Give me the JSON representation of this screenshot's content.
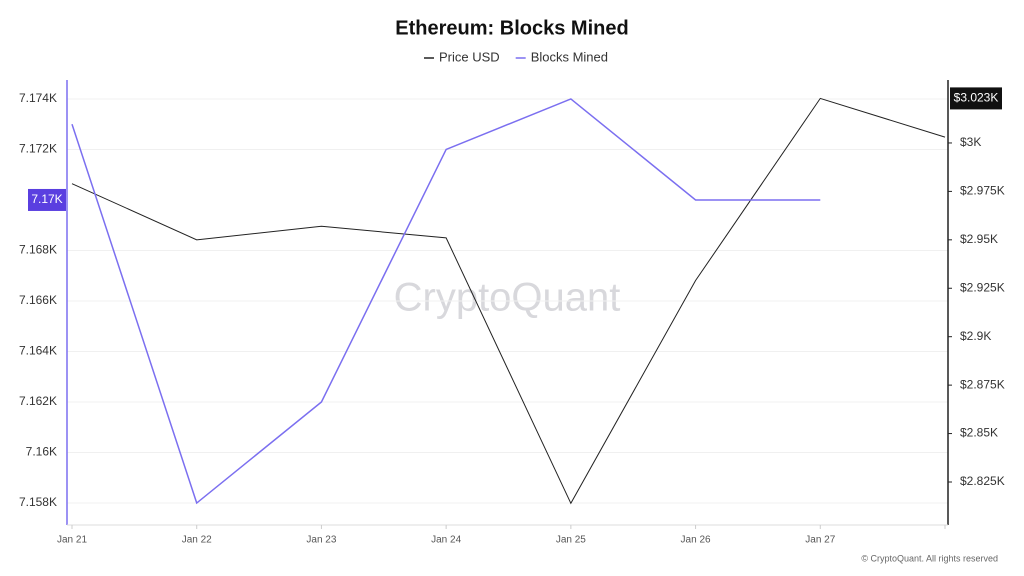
{
  "chart_data": {
    "type": "line",
    "title": "Ethereum: Blocks Mined",
    "categories": [
      "Jan 21",
      "Jan 22",
      "Jan 23",
      "Jan 24",
      "Jan 25",
      "Jan 26",
      "Jan 27",
      null
    ],
    "series": [
      {
        "name": "Price USD",
        "color": "#222222",
        "axis": "y2",
        "values": [
          2979,
          2950,
          2957,
          2951,
          2814,
          2929,
          3023,
          3003
        ],
        "last_label": {
          "value": 3023,
          "label": "$3.023K"
        }
      },
      {
        "name": "Blocks Mined",
        "color": "#7b6ff0",
        "values": [
          7173,
          7158,
          7162,
          7172,
          7174,
          7170,
          7170,
          null
        ],
        "last_label": {
          "value": 7170,
          "label": "7.17K"
        }
      }
    ],
    "ylim": [
      7157.13,
      7174.75
    ],
    "yticks": [
      {
        "value": 7158,
        "label": "7.158K"
      },
      {
        "value": 7160,
        "label": "7.16K"
      },
      {
        "value": 7162,
        "label": "7.162K"
      },
      {
        "value": 7164,
        "label": "7.164K"
      },
      {
        "value": 7166,
        "label": "7.166K"
      },
      {
        "value": 7168,
        "label": "7.168K"
      },
      {
        "value": 7172,
        "label": "7.172K"
      },
      {
        "value": 7174,
        "label": "7.174K"
      }
    ],
    "y2lim": [
      2802.8,
      3032.5
    ],
    "y2ticks": [
      {
        "value": 2825,
        "label": "$2.825K"
      },
      {
        "value": 2850,
        "label": "$2.85K"
      },
      {
        "value": 2875,
        "label": "$2.875K"
      },
      {
        "value": 2900,
        "label": "$2.9K"
      },
      {
        "value": 2925,
        "label": "$2.925K"
      },
      {
        "value": 2950,
        "label": "$2.95K"
      },
      {
        "value": 2975,
        "label": "$2.975K"
      },
      {
        "value": 3000,
        "label": "$3K"
      }
    ],
    "grid": true,
    "legend": "top",
    "watermark": "CryptoQuant",
    "footer": "© CryptoQuant. All rights reserved"
  }
}
